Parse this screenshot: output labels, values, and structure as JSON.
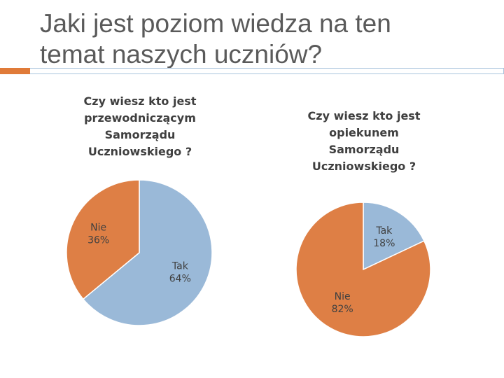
{
  "slide": {
    "title_lines": [
      "Jaki jest poziom wiedza na ten",
      "temat naszych uczniów?"
    ]
  },
  "colors": {
    "tak": "#9ab9d8",
    "nie": "#de7f45",
    "accent": "#e07b39",
    "rule": "#a9c4dd",
    "title_text": "#5a5a5a"
  },
  "chart_data": [
    {
      "type": "pie",
      "title_lines": [
        "Czy wiesz kto jest",
        "przewodniczącym",
        "Samorządu",
        "Uczniowskiego ?"
      ],
      "slices": [
        {
          "category": "Tak",
          "value": 64,
          "label": "64%"
        },
        {
          "category": "Nie",
          "value": 36,
          "label": "36%"
        }
      ]
    },
    {
      "type": "pie",
      "title_lines": [
        "Czy wiesz kto jest",
        "opiekunem",
        "Samorządu",
        "Uczniowskiego ?"
      ],
      "slices": [
        {
          "category": "Tak",
          "value": 18,
          "label": "18%"
        },
        {
          "category": "Nie",
          "value": 82,
          "label": "82%"
        }
      ]
    }
  ]
}
